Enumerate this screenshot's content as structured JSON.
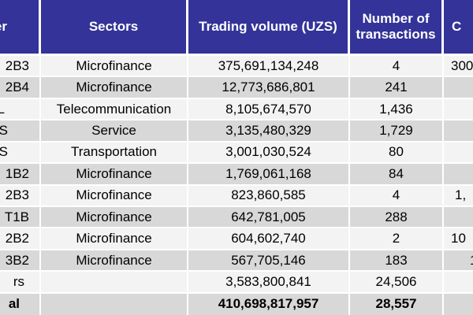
{
  "table": {
    "header": {
      "ticker_fragment": "er",
      "sectors": "Sectors",
      "volume": "Trading volume (UZS)",
      "transactions": "Number of transactions",
      "last_fragment": "C"
    },
    "rows": [
      {
        "ticker": "2B3",
        "sector": "Microfinance",
        "volume": "375,691,134,248",
        "transactions": "4",
        "last": "300",
        "is_total": false
      },
      {
        "ticker": "2B4",
        "sector": "Microfinance",
        "volume": "12,773,686,801",
        "transactions": "241",
        "last": "",
        "is_total": false
      },
      {
        "ticker": "L",
        "sector": "Telecommunication",
        "volume": "8,105,674,570",
        "transactions": "1,436",
        "last": "",
        "is_total": false
      },
      {
        "ticker": "S",
        "sector": "Service",
        "volume": "3,135,480,329",
        "transactions": "1,729",
        "last": "",
        "is_total": false
      },
      {
        "ticker": "S",
        "sector": "Transportation",
        "volume": "3,001,030,524",
        "transactions": "80",
        "last": "",
        "is_total": false
      },
      {
        "ticker": "1B2",
        "sector": "Microfinance",
        "volume": "1,769,061,168",
        "transactions": "84",
        "last": "",
        "is_total": false
      },
      {
        "ticker": "2B3",
        "sector": "Microfinance",
        "volume": "823,860,585",
        "transactions": "4",
        "last": "1,",
        "is_total": false
      },
      {
        "ticker": "T1B",
        "sector": "Microfinance",
        "volume": "642,781,005",
        "transactions": "288",
        "last": "",
        "is_total": false
      },
      {
        "ticker": "2B2",
        "sector": "Microfinance",
        "volume": "604,602,740",
        "transactions": "2",
        "last": "10",
        "is_total": false
      },
      {
        "ticker": "3B2",
        "sector": "Microfinance",
        "volume": "567,705,146",
        "transactions": "183",
        "last": "1",
        "is_total": false
      },
      {
        "ticker": "rs",
        "sector": "",
        "volume": "3,583,800,841",
        "transactions": "24,506",
        "last": "",
        "is_total": false
      },
      {
        "ticker": "al",
        "sector": "",
        "volume": "410,698,817,957",
        "transactions": "28,557",
        "last": "",
        "is_total": true
      }
    ],
    "colors": {
      "header_bg": "#333399",
      "header_text": "#ffffff",
      "row_light": "#f3f3f3",
      "row_dark": "#d8d8d8",
      "body_text": "#000000",
      "grid_lines": "#ffffff"
    }
  }
}
